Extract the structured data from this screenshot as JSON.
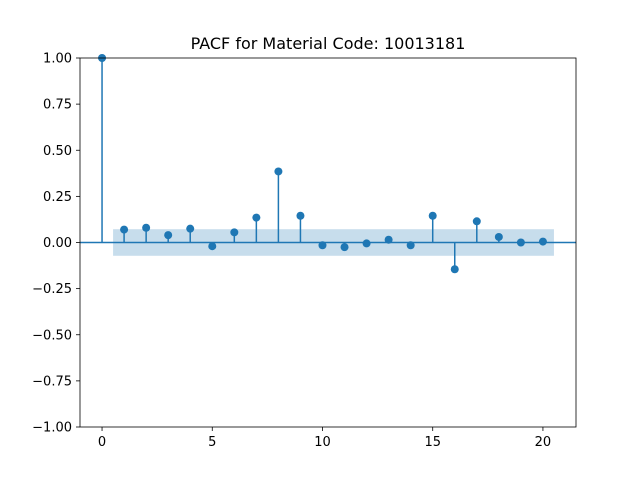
{
  "chart_data": {
    "type": "stem",
    "title": "PACF for Material Code: 10013181",
    "xlabel": "",
    "ylabel": "",
    "xlim": [
      -1,
      21.5
    ],
    "ylim": [
      -1.0,
      1.0
    ],
    "x_ticks": [
      0,
      5,
      10,
      15,
      20
    ],
    "x_tick_labels": [
      "0",
      "5",
      "10",
      "15",
      "20"
    ],
    "y_ticks": [
      -1.0,
      -0.75,
      -0.5,
      -0.25,
      0.0,
      0.25,
      0.5,
      0.75,
      1.0
    ],
    "y_tick_labels": [
      "−1.00",
      "−0.75",
      "−0.50",
      "−0.25",
      "0.00",
      "0.25",
      "0.50",
      "0.75",
      "1.00"
    ],
    "lags": [
      0,
      1,
      2,
      3,
      4,
      5,
      6,
      7,
      8,
      9,
      10,
      11,
      12,
      13,
      14,
      15,
      16,
      17,
      18,
      19,
      20
    ],
    "values": [
      1.0,
      0.07,
      0.08,
      0.04,
      0.075,
      -0.02,
      0.055,
      0.135,
      0.385,
      0.145,
      -0.015,
      -0.025,
      -0.005,
      0.015,
      -0.015,
      0.145,
      -0.145,
      0.115,
      0.03,
      0.0,
      0.005
    ],
    "confidence_band": {
      "lower": -0.072,
      "upper": 0.072,
      "x_start": 0.5,
      "x_end": 20.5
    },
    "grid": false,
    "colors": {
      "stem": "#1f77b4",
      "marker": "#1f77b4",
      "band": "#1f77b4",
      "zero_line": "#1f77b4"
    }
  }
}
